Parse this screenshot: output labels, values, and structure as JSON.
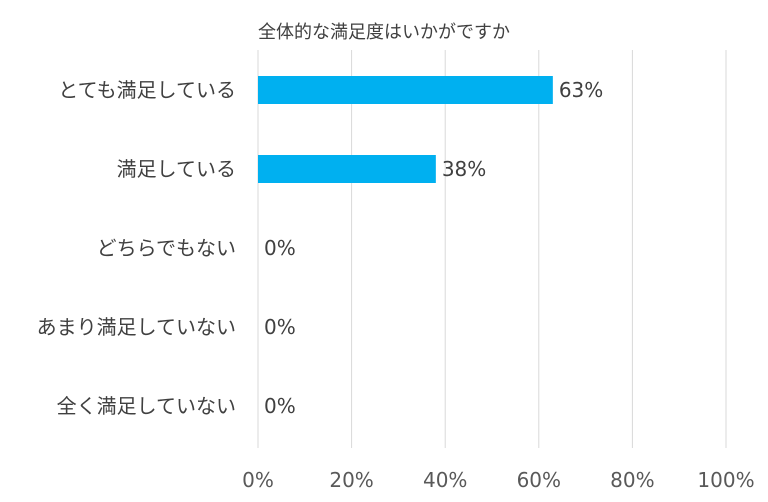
{
  "chart_data": {
    "type": "bar",
    "orientation": "horizontal",
    "title": "全体的な満足度はいかがですか",
    "categories": [
      "とても満足している",
      "満足している",
      "どちらでもない",
      "あまり満足していない",
      "全く満足していない"
    ],
    "values": [
      63,
      38,
      0,
      0,
      0
    ],
    "data_labels": [
      "63%",
      "38%",
      "0%",
      "0%",
      "0%"
    ],
    "xlim": [
      0,
      100
    ],
    "x_ticks": [
      0,
      20,
      40,
      60,
      80,
      100
    ],
    "x_tick_labels": [
      "0%",
      "20%",
      "40%",
      "60%",
      "80%",
      "100%"
    ],
    "xlabel": "",
    "ylabel": "",
    "grid": true,
    "legend": "none",
    "bar_color": "#00b0f0"
  }
}
